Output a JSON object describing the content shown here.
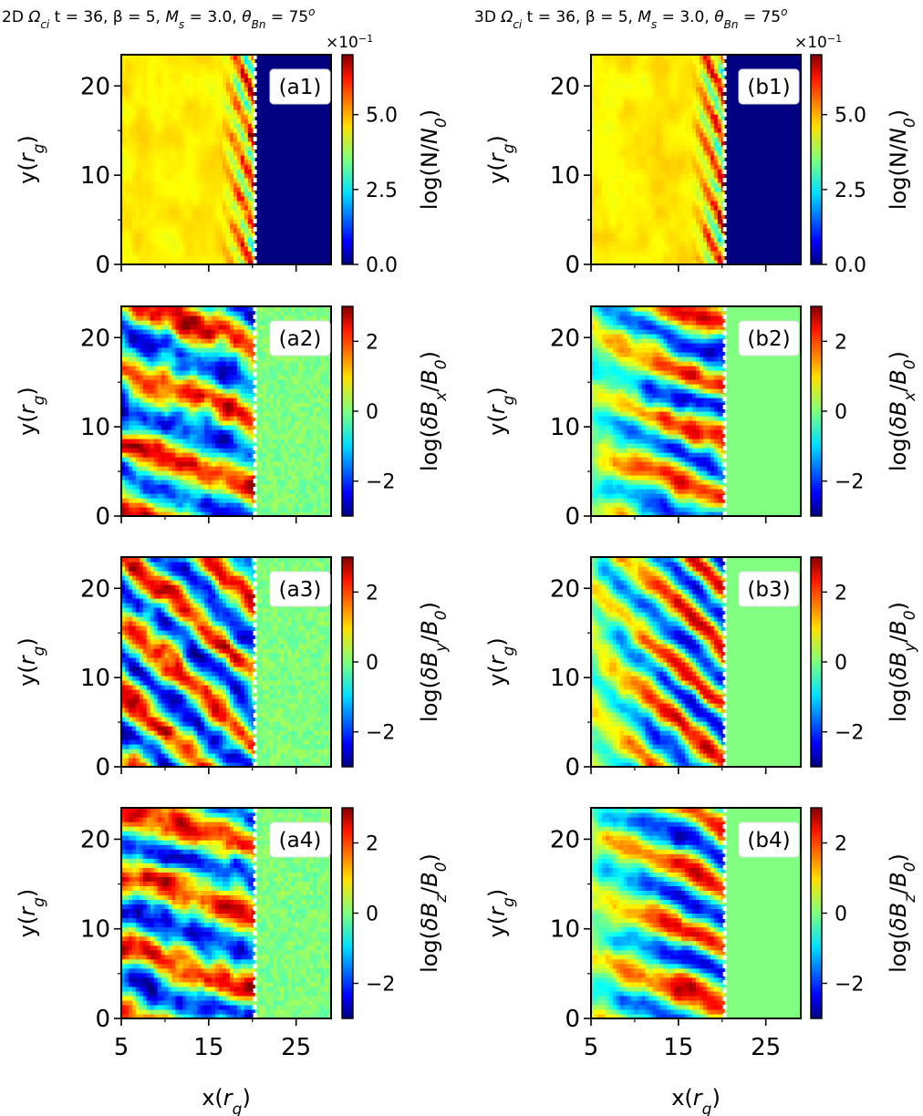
{
  "chart_data": {
    "type": "heatmap",
    "columns": [
      {
        "id": "a",
        "dim": "2D",
        "title": "2D Ω_ci t = 36, β = 5, M_s = 3.0, θ_Bn = 75^o"
      },
      {
        "id": "b",
        "dim": "3D",
        "title": "3D Ω_ci t = 36, β = 5, M_s = 3.0, θ_Bn = 75^o"
      }
    ],
    "xlabel": "x(r_g)",
    "ylabel": "y(r_g)",
    "xlim": [
      5,
      29
    ],
    "ylim": [
      0,
      23.5
    ],
    "xticks": [
      "5",
      "15",
      "25"
    ],
    "yticks": [
      "0",
      "10",
      "20"
    ],
    "shock_position_x": 20.3,
    "colormap": "jet",
    "rows": [
      {
        "quantity": "density",
        "colorbar_label": "log(N/N_0)",
        "clim": [
          0,
          7
        ],
        "colorbar_ticks": [
          "0.0",
          "2.5",
          "5.0"
        ],
        "colorbar_tick_values": [
          0,
          2.5,
          5.0
        ],
        "scale_note": "×10^-1",
        "panels": [
          "(a1)",
          "(b1)"
        ]
      },
      {
        "quantity": "dBx",
        "colorbar_label": "log(δB_x/B_0)",
        "clim": [
          -3,
          3
        ],
        "colorbar_ticks": [
          "−2",
          "0",
          "2"
        ],
        "colorbar_tick_values": [
          -2,
          0,
          2
        ],
        "scale_note": "",
        "panels": [
          "(a2)",
          "(b2)"
        ]
      },
      {
        "quantity": "dBy",
        "colorbar_label": "log(δB_y/B_0)",
        "clim": [
          -3,
          3
        ],
        "colorbar_ticks": [
          "−2",
          "0",
          "2"
        ],
        "colorbar_tick_values": [
          -2,
          0,
          2
        ],
        "scale_note": "",
        "panels": [
          "(a3)",
          "(b3)"
        ]
      },
      {
        "quantity": "dBz",
        "colorbar_label": "log(δB_z/B_0)",
        "clim": [
          -3,
          3
        ],
        "colorbar_ticks": [
          "−2",
          "0",
          "2"
        ],
        "colorbar_tick_values": [
          -2,
          0,
          2
        ],
        "scale_note": "",
        "panels": [
          "(a4)",
          "(b4)"
        ]
      }
    ]
  }
}
